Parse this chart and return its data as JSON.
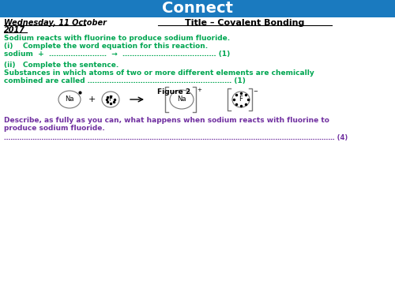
{
  "title": "Connect",
  "title_bg": "#1a7abf",
  "title_color": "white",
  "date_text": "Wednesday, 11 October",
  "date_text2": "2017",
  "subtitle": "Title – Covalent Bonding",
  "green_color": "#00a651",
  "blue_color": "#0070c0",
  "purple_color": "#7030a0",
  "black_color": "#000000",
  "line1": "Sodium reacts with fluorine to produce sodium fluoride.",
  "line2": "(i)    Complete the word equation for this reaction.",
  "line3": "sodium  +  ……………………  →  ………………………………… (1)",
  "line4": "(ii)   Complete the sentence.",
  "line5": "Substances in which atoms of two or more different elements are chemically",
  "line6": "combined are called …………………………………………………… (1)",
  "fig_label": "Figure 2",
  "desc1": "Describe, as fully as you can, what happens when sodium reacts with fluorine to",
  "desc2": "produce sodium fluoride.",
  "dots_line": "…………………………………………………………………………………………………………………………………… (4)"
}
